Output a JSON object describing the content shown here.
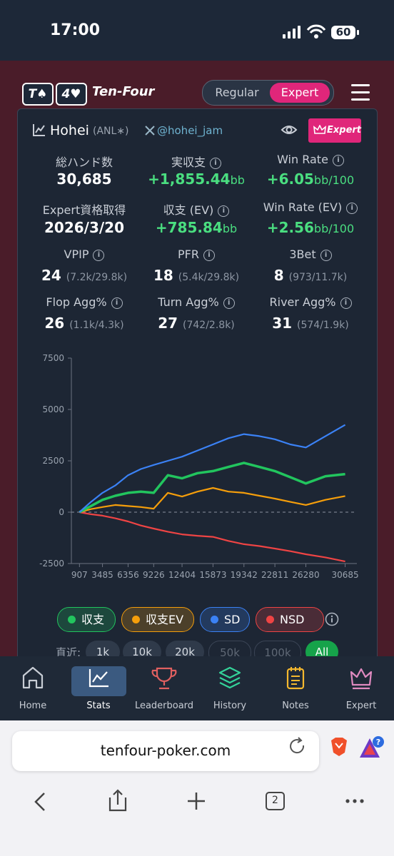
{
  "status_bar": {
    "time": "17:00",
    "battery": "60"
  },
  "header": {
    "logo_tiles": [
      "T♠",
      "4♥"
    ],
    "brand": "Ten-Four",
    "modes": [
      "Regular",
      "Expert"
    ]
  },
  "profile": {
    "name": "Hohei",
    "tag": "(ANL∗)",
    "x_handle": "@hohei_jam",
    "badge": "Expert"
  },
  "stats": [
    {
      "label": "総ハンド数",
      "value": "30,685"
    },
    {
      "label": "実収支",
      "value": "+1,855.44",
      "unit": "bb",
      "info": true,
      "color": "#4ade80"
    },
    {
      "label": "Win Rate",
      "value": "+6.05",
      "unit": "bb/100",
      "info": true,
      "color": "#4ade80"
    },
    {
      "label": "Expert資格取得",
      "value": "2026/3/20"
    },
    {
      "label": "収支 (EV)",
      "value": "+785.84",
      "unit": "bb",
      "info": true,
      "color": "#4ade80"
    },
    {
      "label": "Win Rate (EV)",
      "value": "+2.56",
      "unit": "bb/100",
      "info": true,
      "color": "#4ade80"
    },
    {
      "label": "VPIP",
      "value": "24",
      "detail": "(7.2k/29.8k)",
      "info": true
    },
    {
      "label": "PFR",
      "value": "18",
      "detail": "(5.4k/29.8k)",
      "info": true
    },
    {
      "label": "3Bet",
      "value": "8",
      "detail": "(973/11.7k)",
      "info": true
    },
    {
      "label": "Flop Agg%",
      "value": "26",
      "detail": "(1.1k/4.3k)",
      "info": true
    },
    {
      "label": "Turn Agg%",
      "value": "27",
      "detail": "(742/2.8k)",
      "info": true
    },
    {
      "label": "River Agg%",
      "value": "31",
      "detail": "(574/1.9k)",
      "info": true
    }
  ],
  "chart_data": {
    "type": "line",
    "x": [
      907,
      2196,
      3485,
      4920,
      6356,
      7791,
      9226,
      10815,
      12404,
      14138,
      15873,
      17607,
      19342,
      21076,
      22811,
      24545,
      26280,
      28482,
      30685
    ],
    "series": [
      {
        "name": "収支",
        "color": "#22c55e",
        "values": [
          0,
          300,
          600,
          800,
          940,
          1000,
          940,
          1800,
          1650,
          1900,
          2000,
          2200,
          2400,
          2200,
          2000,
          1700,
          1400,
          1750,
          1855
        ]
      },
      {
        "name": "収支EV",
        "color": "#f59e0b",
        "values": [
          0,
          150,
          250,
          350,
          300,
          250,
          170,
          940,
          760,
          1000,
          1180,
          1000,
          940,
          800,
          660,
          500,
          350,
          600,
          786
        ]
      },
      {
        "name": "SD",
        "color": "#3b82f6",
        "values": [
          0,
          500,
          940,
          1300,
          1800,
          2100,
          2300,
          2500,
          2700,
          3000,
          3300,
          3600,
          3800,
          3700,
          3550,
          3300,
          3150,
          3700,
          4250
        ]
      },
      {
        "name": "NSD",
        "color": "#ef4444",
        "values": [
          0,
          -100,
          -170,
          -300,
          -450,
          -650,
          -800,
          -950,
          -1080,
          -1150,
          -1200,
          -1400,
          -1560,
          -1650,
          -1770,
          -1900,
          -2050,
          -2200,
          -2400
        ]
      }
    ],
    "xlim": [
      0,
      32000
    ],
    "xticks": [
      907,
      3485,
      6356,
      9226,
      12404,
      15873,
      19342,
      22811,
      26280,
      30685
    ],
    "ylim": [
      -2500,
      7500
    ],
    "yticks": [
      -2500,
      0,
      2500,
      5000,
      7500
    ]
  },
  "range_filter": {
    "label": "直近:",
    "options": [
      "1k",
      "10k",
      "20k",
      "50k",
      "100k",
      "All"
    ]
  },
  "nav": [
    "Home",
    "Stats",
    "Leaderboard",
    "History",
    "Notes",
    "Expert"
  ],
  "browser": {
    "url": "tenfour-poker.com",
    "tabs": "2"
  }
}
